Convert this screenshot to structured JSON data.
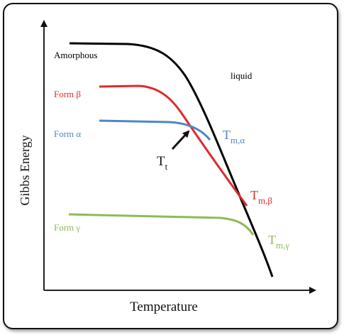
{
  "diagram": {
    "y_axis_label": "Gibbs Energy",
    "x_axis_label": "Temperature",
    "region_label": "liquid",
    "curves": {
      "amorphous": {
        "label": "Amorphous",
        "color": "#000000"
      },
      "beta": {
        "label": "Form β",
        "color": "#dd2b2b",
        "tm_main": "T",
        "tm_sub": "m,β"
      },
      "alpha": {
        "label": "Form α",
        "color": "#4e86c6",
        "tm_main": "T",
        "tm_sub": "m,α"
      },
      "gamma": {
        "label": "Form γ",
        "color": "#8dbb56",
        "tm_main": "T",
        "tm_sub": "m,γ"
      }
    },
    "transition": {
      "main": "T",
      "sub": "t"
    }
  }
}
